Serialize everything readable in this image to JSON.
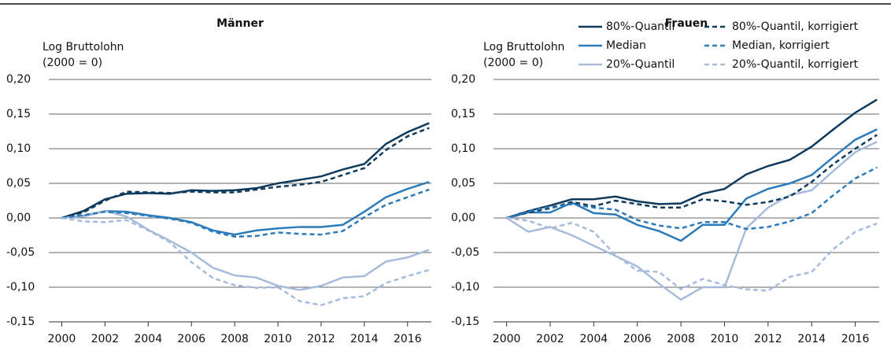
{
  "chart_data": [
    {
      "type": "line",
      "title": "Männer",
      "ylabel": [
        "Log Bruttolohn",
        "(2000 = 0)"
      ],
      "x": [
        2000,
        2001,
        2002,
        2003,
        2004,
        2005,
        2006,
        2007,
        2008,
        2009,
        2010,
        2011,
        2012,
        2013,
        2014,
        2015,
        2016,
        2017
      ],
      "xlim": [
        1999.4,
        2017.1
      ],
      "xticks": [
        2000,
        2002,
        2004,
        2006,
        2008,
        2010,
        2012,
        2014,
        2016
      ],
      "ylim": [
        -0.15,
        0.2
      ],
      "yticks": [
        {
          "value": -0.15,
          "label": "-0,15"
        },
        {
          "value": -0.1,
          "label": "-0,10"
        },
        {
          "value": -0.05,
          "label": "-0,05"
        },
        {
          "value": 0,
          "label": "0,00"
        },
        {
          "value": 0.05,
          "label": "0,05"
        },
        {
          "value": 0.1,
          "label": "0,10"
        },
        {
          "value": 0.15,
          "label": "0,15"
        },
        {
          "value": 0.2,
          "label": "0,20"
        }
      ],
      "grid": true,
      "legend": false,
      "series": [
        {
          "color": "#0d3a5c",
          "dashed": false,
          "values": [
            0,
            0.01,
            0.027,
            0.035,
            0.036,
            0.035,
            0.04,
            0.039,
            0.04,
            0.043,
            0.05,
            0.055,
            0.06,
            0.07,
            0.078,
            0.107,
            0.124,
            0.137
          ]
        },
        {
          "color": "#2b7bba",
          "dashed": false,
          "values": [
            0,
            0.003,
            0.01,
            0.009,
            0.004,
            0,
            -0.006,
            -0.018,
            -0.024,
            -0.018,
            -0.015,
            -0.013,
            -0.013,
            -0.01,
            0.009,
            0.03,
            0.042,
            0.052
          ]
        },
        {
          "color": "#a6bbdc",
          "dashed": false,
          "values": [
            0,
            0.002,
            0.01,
            0.002,
            -0.017,
            -0.033,
            -0.05,
            -0.072,
            -0.083,
            -0.086,
            -0.098,
            -0.104,
            -0.098,
            -0.086,
            -0.084,
            -0.063,
            -0.057,
            -0.046
          ]
        },
        {
          "color": "#0d3a5c",
          "dashed": true,
          "values": [
            0,
            0.008,
            0.025,
            0.038,
            0.037,
            0.036,
            0.038,
            0.037,
            0.037,
            0.041,
            0.045,
            0.048,
            0.052,
            0.062,
            0.072,
            0.098,
            0.118,
            0.13
          ]
        },
        {
          "color": "#2b7bba",
          "dashed": true,
          "values": [
            0,
            0.004,
            0.009,
            0.007,
            0.003,
            -0.001,
            -0.007,
            -0.02,
            -0.027,
            -0.026,
            -0.021,
            -0.023,
            -0.024,
            -0.019,
            0.001,
            0.019,
            0.03,
            0.041
          ]
        },
        {
          "color": "#a6bbdc",
          "dashed": true,
          "values": [
            0,
            -0.005,
            -0.006,
            -0.003,
            -0.018,
            -0.035,
            -0.064,
            -0.087,
            -0.097,
            -0.101,
            -0.1,
            -0.12,
            -0.126,
            -0.116,
            -0.113,
            -0.094,
            -0.084,
            -0.075
          ]
        }
      ]
    },
    {
      "type": "line",
      "title": "Frauen",
      "ylabel": [
        "Log Bruttolohn",
        "(2000 = 0)"
      ],
      "x": [
        2000,
        2001,
        2002,
        2003,
        2004,
        2005,
        2006,
        2007,
        2008,
        2009,
        2010,
        2011,
        2012,
        2013,
        2014,
        2015,
        2016,
        2017
      ],
      "xlim": [
        1999.4,
        2017.1
      ],
      "xticks": [
        2000,
        2002,
        2004,
        2006,
        2008,
        2010,
        2012,
        2014,
        2016
      ],
      "ylim": [
        -0.15,
        0.2
      ],
      "yticks": [
        {
          "value": -0.15,
          "label": "-0,15"
        },
        {
          "value": -0.1,
          "label": "-0,10"
        },
        {
          "value": -0.05,
          "label": "-0,05"
        },
        {
          "value": 0,
          "label": "0,00"
        },
        {
          "value": 0.05,
          "label": "0,05"
        },
        {
          "value": 0.1,
          "label": "0,10"
        },
        {
          "value": 0.15,
          "label": "0,15"
        },
        {
          "value": 0.2,
          "label": "0,20"
        }
      ],
      "grid": true,
      "legend": true,
      "series": [
        {
          "name": "80%-Quantil",
          "color": "#0d3a5c",
          "dashed": false,
          "values": [
            0,
            0.01,
            0.018,
            0.027,
            0.027,
            0.031,
            0.024,
            0.02,
            0.021,
            0.035,
            0.042,
            0.063,
            0.075,
            0.084,
            0.103,
            0.128,
            0.152,
            0.171
          ]
        },
        {
          "name": "Median",
          "color": "#2b7bba",
          "dashed": false,
          "values": [
            0,
            0.008,
            0.008,
            0.022,
            0.007,
            0.005,
            -0.01,
            -0.019,
            -0.033,
            -0.01,
            -0.01,
            0.028,
            0.042,
            0.05,
            0.062,
            0.088,
            0.113,
            0.128
          ]
        },
        {
          "name": "20%-Quantil",
          "color": "#a6bbdc",
          "dashed": false,
          "values": [
            0,
            -0.02,
            -0.013,
            -0.025,
            -0.04,
            -0.055,
            -0.07,
            -0.095,
            -0.118,
            -0.1,
            -0.1,
            -0.015,
            0.015,
            0.033,
            0.04,
            0.068,
            0.095,
            0.11
          ]
        },
        {
          "name": "80%-Quantil, korrigiert",
          "color": "#0d3a5c",
          "dashed": true,
          "values": [
            0,
            0.008,
            0.014,
            0.023,
            0.017,
            0.025,
            0.02,
            0.015,
            0.015,
            0.027,
            0.024,
            0.019,
            0.023,
            0.031,
            0.052,
            0.078,
            0.1,
            0.12
          ]
        },
        {
          "name": "Median, korrigiert",
          "color": "#2b7bba",
          "dashed": true,
          "values": [
            0,
            0.01,
            0.016,
            0.02,
            0.015,
            0.012,
            -0.003,
            -0.011,
            -0.015,
            -0.006,
            -0.006,
            -0.016,
            -0.013,
            -0.005,
            0.007,
            0.033,
            0.057,
            0.073
          ]
        },
        {
          "name": "20%-Quantil, korrigiert",
          "color": "#a6bbdc",
          "dashed": true,
          "values": [
            0,
            -0.004,
            -0.015,
            -0.007,
            -0.02,
            -0.054,
            -0.076,
            -0.078,
            -0.103,
            -0.088,
            -0.097,
            -0.103,
            -0.105,
            -0.085,
            -0.078,
            -0.045,
            -0.02,
            -0.008
          ]
        }
      ]
    }
  ]
}
